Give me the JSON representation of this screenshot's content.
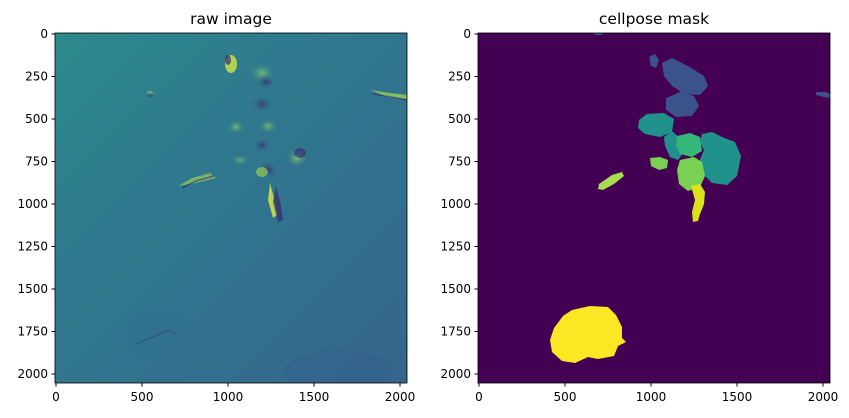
{
  "panels": [
    {
      "title": "raw image",
      "image": "raw microscopy image, viridis colormap",
      "xticks": [
        "0",
        "500",
        "1000",
        "1500",
        "2000"
      ],
      "yticks": [
        "0",
        "250",
        "500",
        "750",
        "1000",
        "1250",
        "1500",
        "1750",
        "2000"
      ]
    },
    {
      "title": "cellpose mask",
      "image": "segmentation label mask, viridis colormap",
      "xticks": [
        "0",
        "500",
        "1000",
        "1500",
        "2000"
      ],
      "yticks": [
        "0",
        "250",
        "500",
        "750",
        "1000",
        "1250",
        "1500",
        "1750",
        "2000"
      ]
    }
  ],
  "colors": {
    "viridis_background": "#440154",
    "raw_background": "#336a8d",
    "mask_yellow": "#fde725",
    "mask_green": "#35b779",
    "mask_teal": "#21918c",
    "mask_blue": "#3b528b"
  }
}
